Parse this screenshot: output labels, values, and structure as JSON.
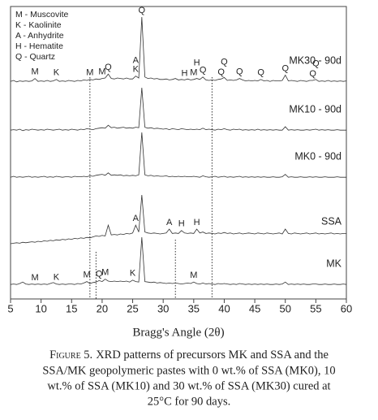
{
  "chart_data": {
    "type": "line",
    "xlabel": "Bragg's Angle (2θ)",
    "xlim": [
      5,
      60
    ],
    "xticks": [
      5,
      10,
      15,
      20,
      25,
      30,
      35,
      40,
      45,
      50,
      55,
      60
    ],
    "ylim": [
      0,
      100
    ],
    "legend_notes": [
      "M - Muscovite",
      "K - Kaolinite",
      "A - Anhydrite",
      "H - Hematite",
      "Q - Quartz"
    ],
    "reference_lines": [
      18,
      38,
      19,
      32
    ],
    "caption": {
      "label": "Figure 5.",
      "lines": [
        "XRD patterns of precursors MK and SSA and the",
        "SSA/MK geopolymeric pastes with 0 wt.% of SSA (MK0), 10",
        "wt.% of SSA (MK10) and 30 wt.% of SSA (MK30) cured at",
        "25°C for 90 days."
      ]
    },
    "x": [
      5,
      5.5,
      6,
      6.5,
      7,
      7.5,
      8,
      8.5,
      9,
      9.5,
      10,
      10.5,
      11,
      11.5,
      12,
      12.5,
      13,
      13.5,
      14,
      14.5,
      15,
      15.5,
      16,
      16.5,
      17,
      17.5,
      18,
      18.5,
      19,
      19.5,
      20,
      20.5,
      21,
      21.5,
      22,
      22.5,
      23,
      23.5,
      24,
      24.5,
      25,
      25.5,
      26,
      26.5,
      27,
      27.5,
      28,
      28.5,
      29,
      29.5,
      30,
      30.5,
      31,
      31.5,
      32,
      32.5,
      33,
      33.5,
      34,
      34.5,
      35,
      35.5,
      36,
      36.5,
      37,
      37.5,
      38,
      38.5,
      39,
      39.5,
      40,
      40.5,
      41,
      41.5,
      42,
      42.5,
      43,
      43.5,
      44,
      44.5,
      45,
      45.5,
      46,
      46.5,
      47,
      47.5,
      48,
      48.5,
      49,
      49.5,
      50,
      50.5,
      51,
      51.5,
      52,
      52.5,
      53,
      53.5,
      54,
      54.5,
      55,
      55.5,
      56,
      56.5,
      57,
      57.5,
      58,
      58.5,
      59,
      59.5,
      60
    ],
    "series": [
      {
        "name": "MK30 - 90d",
        "color": "#333333",
        "values": [
          3,
          5,
          2,
          4,
          3,
          4,
          3,
          4,
          9,
          3,
          4,
          3,
          5,
          3,
          4,
          7,
          3,
          4,
          3,
          5,
          4,
          3,
          5,
          4,
          6,
          5,
          7,
          6,
          8,
          7,
          9,
          10,
          18,
          9,
          8,
          10,
          9,
          8,
          10,
          8,
          8,
          14,
          10,
          135,
          12,
          9,
          10,
          8,
          9,
          7,
          7,
          8,
          6,
          7,
          9,
          6,
          7,
          6,
          8,
          6,
          7,
          9,
          7,
          12,
          6,
          5,
          6,
          5,
          7,
          8,
          11,
          5,
          6,
          5,
          6,
          9,
          6,
          4,
          5,
          4,
          5,
          4,
          7,
          4,
          5,
          3,
          5,
          4,
          4,
          5,
          16,
          4,
          5,
          4,
          3,
          5,
          4,
          3,
          5,
          5,
          7,
          3,
          4,
          3,
          5,
          3,
          4,
          3,
          4,
          3,
          4
        ],
        "peaks": [
          {
            "label": "M",
            "x": 9
          },
          {
            "label": "K",
            "x": 12.5
          },
          {
            "label": "M",
            "x": 18
          },
          {
            "label": "M",
            "x": 20
          },
          {
            "label": "Q",
            "x": 21
          },
          {
            "label": "K",
            "x": 25.5
          },
          {
            "label": "A",
            "x": 25.5
          },
          {
            "label": "Q",
            "x": 26.5
          },
          {
            "label": "H",
            "x": 33.5
          },
          {
            "label": "M",
            "x": 35
          },
          {
            "label": "H",
            "x": 35.5
          },
          {
            "label": "Q",
            "x": 36.5
          },
          {
            "label": "Q",
            "x": 39.5
          },
          {
            "label": "Q",
            "x": 40
          },
          {
            "label": "Q",
            "x": 42.5
          },
          {
            "label": "Q",
            "x": 46
          },
          {
            "label": "Q",
            "x": 50
          },
          {
            "label": "Q",
            "x": 54.5
          },
          {
            "label": "Q",
            "x": 55
          }
        ]
      },
      {
        "name": "MK10 - 90d",
        "color": "#333333",
        "values": [
          3,
          4,
          3,
          5,
          2,
          4,
          3,
          5,
          4,
          3,
          4,
          3,
          5,
          4,
          3,
          4,
          5,
          3,
          4,
          3,
          5,
          4,
          3,
          5,
          4,
          6,
          5,
          4,
          6,
          7,
          8,
          7,
          13,
          8,
          9,
          7,
          8,
          9,
          7,
          8,
          7,
          9,
          8,
          90,
          9,
          7,
          8,
          6,
          7,
          6,
          5,
          6,
          4,
          6,
          5,
          4,
          6,
          5,
          4,
          5,
          4,
          5,
          4,
          7,
          4,
          5,
          4,
          3,
          5,
          4,
          6,
          4,
          3,
          5,
          4,
          5,
          3,
          4,
          3,
          4,
          3,
          5,
          3,
          4,
          3,
          4,
          3,
          4,
          3,
          3,
          10,
          3,
          4,
          3,
          4,
          3,
          3,
          4,
          3,
          4,
          5,
          3,
          4,
          3,
          4,
          3,
          3,
          4,
          3,
          3,
          3
        ]
      },
      {
        "name": "MK0 - 90d",
        "color": "#333333",
        "values": [
          3,
          5,
          3,
          4,
          3,
          4,
          5,
          3,
          4,
          3,
          4,
          5,
          3,
          4,
          3,
          5,
          4,
          3,
          4,
          4,
          3,
          5,
          4,
          4,
          5,
          4,
          6,
          5,
          7,
          8,
          9,
          7,
          12,
          7,
          8,
          7,
          8,
          6,
          7,
          6,
          7,
          6,
          8,
          95,
          8,
          6,
          7,
          5,
          6,
          5,
          5,
          6,
          4,
          5,
          4,
          5,
          4,
          5,
          4,
          4,
          5,
          4,
          3,
          6,
          4,
          3,
          4,
          5,
          3,
          4,
          5,
          3,
          4,
          3,
          4,
          5,
          3,
          4,
          3,
          4,
          3,
          4,
          3,
          4,
          3,
          3,
          4,
          3,
          3,
          4,
          9,
          3,
          4,
          3,
          3,
          4,
          3,
          3,
          4,
          3,
          4,
          3,
          3,
          4,
          3,
          3,
          3,
          4,
          3,
          3,
          3
        ]
      },
      {
        "name": "SSA",
        "color": "#333333",
        "values": [
          0,
          1,
          2,
          1,
          3,
          2,
          3,
          4,
          3,
          5,
          4,
          6,
          5,
          7,
          6,
          8,
          7,
          9,
          8,
          10,
          9,
          11,
          10,
          12,
          11,
          13,
          12,
          14,
          16,
          15,
          17,
          16,
          38,
          18,
          19,
          18,
          20,
          19,
          21,
          20,
          22,
          38,
          24,
          100,
          24,
          22,
          21,
          22,
          21,
          20,
          21,
          22,
          30,
          21,
          22,
          21,
          27,
          22,
          21,
          22,
          21,
          30,
          22,
          24,
          21,
          22,
          21,
          20,
          22,
          21,
          23,
          21,
          22,
          20,
          21,
          22,
          20,
          21,
          22,
          21,
          20,
          22,
          21,
          20,
          22,
          21,
          20,
          21,
          22,
          20,
          30,
          21,
          20,
          22,
          21,
          20,
          21,
          22,
          20,
          21,
          22,
          20,
          21,
          20,
          21,
          22,
          20,
          21,
          20,
          21,
          21
        ],
        "peaks": [
          {
            "label": "A",
            "x": 25.5
          },
          {
            "label": "A",
            "x": 31
          },
          {
            "label": "H",
            "x": 33
          },
          {
            "label": "H",
            "x": 35.5
          }
        ]
      },
      {
        "name": "MK",
        "color": "#333333",
        "values": [
          3,
          4,
          3,
          5,
          8,
          4,
          3,
          4,
          3,
          4,
          3,
          4,
          3,
          5,
          7,
          4,
          3,
          4,
          3,
          4,
          4,
          3,
          5,
          4,
          6,
          9,
          5,
          7,
          8,
          11,
          9,
          14,
          10,
          9,
          10,
          9,
          10,
          9,
          10,
          8,
          12,
          9,
          8,
          100,
          9,
          8,
          7,
          8,
          6,
          7,
          6,
          5,
          6,
          5,
          6,
          5,
          4,
          5,
          6,
          5,
          8,
          5,
          4,
          6,
          4,
          5,
          4,
          3,
          5,
          4,
          5,
          4,
          3,
          4,
          3,
          5,
          4,
          3,
          4,
          3,
          4,
          3,
          4,
          3,
          4,
          3,
          3,
          4,
          3,
          4,
          8,
          3,
          4,
          3,
          4,
          3,
          4,
          3,
          3,
          4,
          4,
          3,
          3,
          4,
          3,
          3,
          4,
          3,
          3,
          4,
          3
        ],
        "peaks": [
          {
            "label": "M",
            "x": 9
          },
          {
            "label": "K",
            "x": 12.5
          },
          {
            "label": "M",
            "x": 17.5
          },
          {
            "label": "Q",
            "x": 19.5
          },
          {
            "label": "M",
            "x": 20.5
          },
          {
            "label": "K",
            "x": 25
          },
          {
            "label": "M",
            "x": 35
          }
        ]
      }
    ]
  }
}
